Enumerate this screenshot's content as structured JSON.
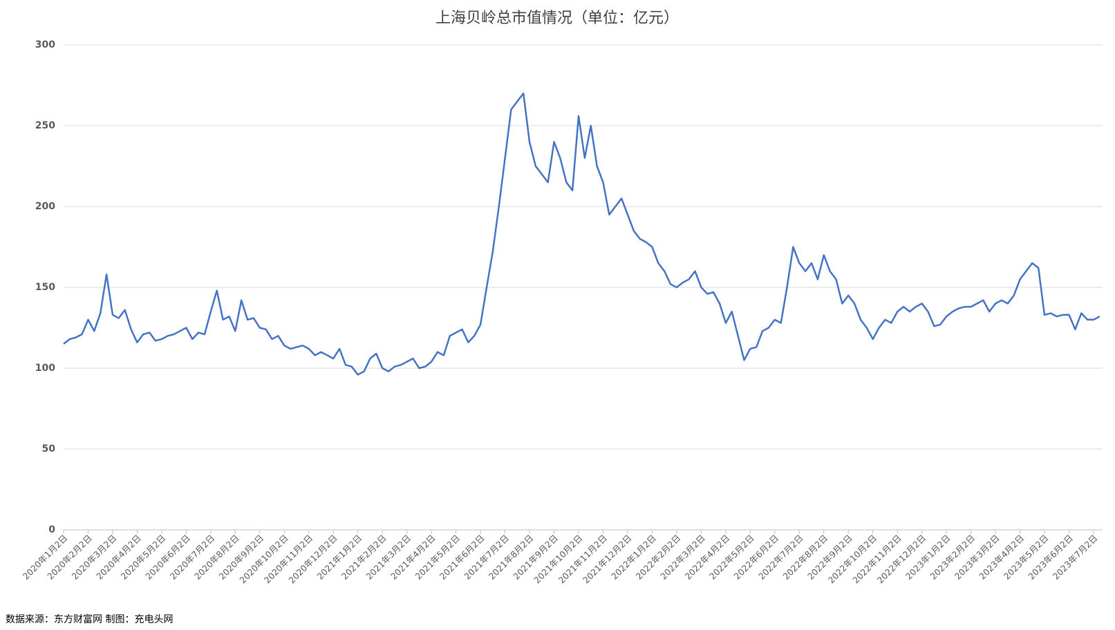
{
  "chart_data": {
    "type": "line",
    "title": "上海贝岭总市值情况（单位：亿元）",
    "source": "数据来源：东方财富网 制图：充电头网",
    "categories": [
      "2020年1月2日",
      null,
      null,
      null,
      "2020年2月2日",
      null,
      null,
      null,
      "2020年3月2日",
      null,
      null,
      null,
      "2020年4月2日",
      null,
      null,
      null,
      "2020年5月2日",
      null,
      null,
      null,
      "2020年6月2日",
      null,
      null,
      null,
      "2020年7月2日",
      null,
      null,
      null,
      "2020年8月2日",
      null,
      null,
      null,
      "2020年9月2日",
      null,
      null,
      null,
      "2020年10月2日",
      null,
      null,
      null,
      "2020年11月2日",
      null,
      null,
      null,
      "2020年12月2日",
      null,
      null,
      null,
      "2021年1月2日",
      null,
      null,
      null,
      "2021年2月2日",
      null,
      null,
      null,
      "2021年3月2日",
      null,
      null,
      null,
      "2021年4月2日",
      null,
      null,
      null,
      "2021年5月2日",
      null,
      null,
      null,
      "2021年6月2日",
      null,
      null,
      null,
      "2021年7月2日",
      null,
      null,
      null,
      "2021年8月2日",
      null,
      null,
      null,
      "2021年9月2日",
      null,
      null,
      null,
      "2021年10月2日",
      null,
      null,
      null,
      "2021年11月2日",
      null,
      null,
      null,
      "2021年12月2日",
      null,
      null,
      null,
      "2022年1月2日",
      null,
      null,
      null,
      "2022年2月2日",
      null,
      null,
      null,
      "2022年3月2日",
      null,
      null,
      null,
      "2022年4月2日",
      null,
      null,
      null,
      "2022年5月2日",
      null,
      null,
      null,
      "2022年6月2日",
      null,
      null,
      null,
      "2022年7月2日",
      null,
      null,
      null,
      "2022年8月2日",
      null,
      null,
      null,
      "2022年9月2日",
      null,
      null,
      null,
      "2022年10月2日",
      null,
      null,
      null,
      "2022年11月2日",
      null,
      null,
      null,
      "2022年12月2日",
      null,
      null,
      null,
      "2023年1月2日",
      null,
      null,
      null,
      "2023年2月2日",
      null,
      null,
      null,
      "2023年3月2日",
      null,
      null,
      null,
      "2023年4月2日",
      null,
      null,
      null,
      "2023年5月2日",
      null,
      null,
      null,
      "2023年6月2日",
      null,
      null,
      null,
      "2023年7月2日",
      null
    ],
    "series": [
      {
        "name": "总市值",
        "color": "#4472c4",
        "values": [
          115,
          118,
          119,
          121,
          130,
          123,
          134,
          158,
          133,
          131,
          136,
          124,
          116,
          121,
          122,
          117,
          118,
          120,
          121,
          123,
          125,
          118,
          122,
          121,
          135,
          148,
          130,
          132,
          123,
          142,
          130,
          131,
          125,
          124,
          118,
          120,
          114,
          112,
          113,
          114,
          112,
          108,
          110,
          108,
          106,
          112,
          102,
          101,
          96,
          98,
          106,
          109,
          100,
          98,
          101,
          102,
          104,
          106,
          100,
          101,
          104,
          110,
          108,
          120,
          122,
          124,
          116,
          120,
          127,
          150,
          172,
          200,
          230,
          260,
          265,
          270,
          240,
          225,
          220,
          215,
          240,
          230,
          215,
          210,
          256,
          230,
          250,
          225,
          215,
          195,
          200,
          205,
          195,
          185,
          180,
          178,
          175,
          165,
          160,
          152,
          150,
          153,
          155,
          160,
          150,
          146,
          147,
          140,
          128,
          135,
          120,
          105,
          112,
          113,
          123,
          125,
          130,
          128,
          150,
          175,
          165,
          160,
          165,
          155,
          170,
          160,
          155,
          140,
          145,
          140,
          130,
          125,
          118,
          125,
          130,
          128,
          135,
          138,
          135,
          138,
          140,
          135,
          126,
          127,
          132,
          135,
          137,
          138,
          138,
          140,
          142,
          135,
          140,
          142,
          140,
          145,
          155,
          160,
          165,
          162,
          133,
          134,
          132,
          133,
          133,
          124,
          134,
          130,
          130,
          132
        ]
      }
    ],
    "ylim": [
      0,
      300
    ],
    "yticks": [
      0,
      50,
      100,
      150,
      200,
      250,
      300
    ],
    "grid": true
  }
}
